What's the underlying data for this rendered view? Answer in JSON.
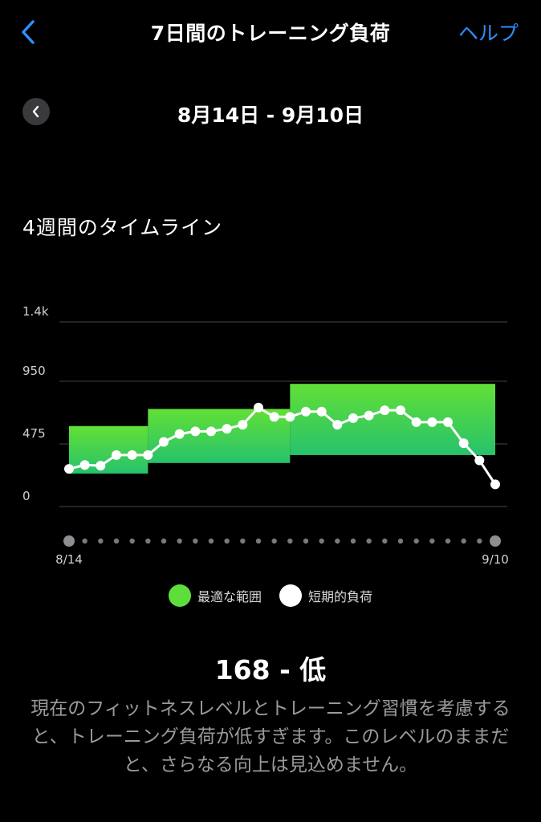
{
  "nav": {
    "title": "7日間のトレーニング負荷",
    "help": "ヘルプ",
    "back_icon": "chevron-left-icon"
  },
  "period": {
    "range": "8月14日 - 9月10日",
    "prev_icon": "chevron-left-icon"
  },
  "section_title": "4週間のタイムライン",
  "chart_data": {
    "type": "line",
    "ylim": [
      0,
      1400
    ],
    "y_ticks": [
      "1.4k",
      "950",
      "475",
      "0"
    ],
    "y_tick_values": [
      1400,
      950,
      475,
      0
    ],
    "x_start_label": "8/14",
    "x_end_label": "9/10",
    "x": [
      1,
      2,
      3,
      4,
      5,
      6,
      7,
      8,
      9,
      10,
      11,
      12,
      13,
      14,
      15,
      16,
      17,
      18,
      19,
      20,
      21,
      22,
      23,
      24,
      25,
      26,
      27,
      28
    ],
    "series": [
      {
        "name": "短期的負荷",
        "color": "#ffffff",
        "values": [
          285,
          315,
          310,
          390,
          390,
          390,
          490,
          550,
          570,
          570,
          590,
          620,
          750,
          680,
          680,
          720,
          720,
          620,
          670,
          690,
          730,
          730,
          640,
          640,
          640,
          480,
          350,
          168
        ]
      }
    ],
    "band": {
      "name": "最適な範囲",
      "color_top": "#62e036",
      "color_bottom": "#27c26c",
      "segments": [
        {
          "x_from": 1,
          "x_to": 6,
          "low": 250,
          "high": 610
        },
        {
          "x_from": 6,
          "x_to": 15,
          "low": 330,
          "high": 740
        },
        {
          "x_from": 15,
          "x_to": 28,
          "low": 390,
          "high": 930
        }
      ]
    },
    "timeline_dots": 28,
    "grid": true
  },
  "legend": {
    "optimal": "最適な範囲",
    "short_term": "短期的負荷"
  },
  "summary": {
    "score": "168 - 低",
    "description": "現在のフィットネスレベルとトレーニング習慣を考慮すると、トレーニング負荷が低すぎます。このレベルのままだと、さらなる向上は見込めません。"
  }
}
